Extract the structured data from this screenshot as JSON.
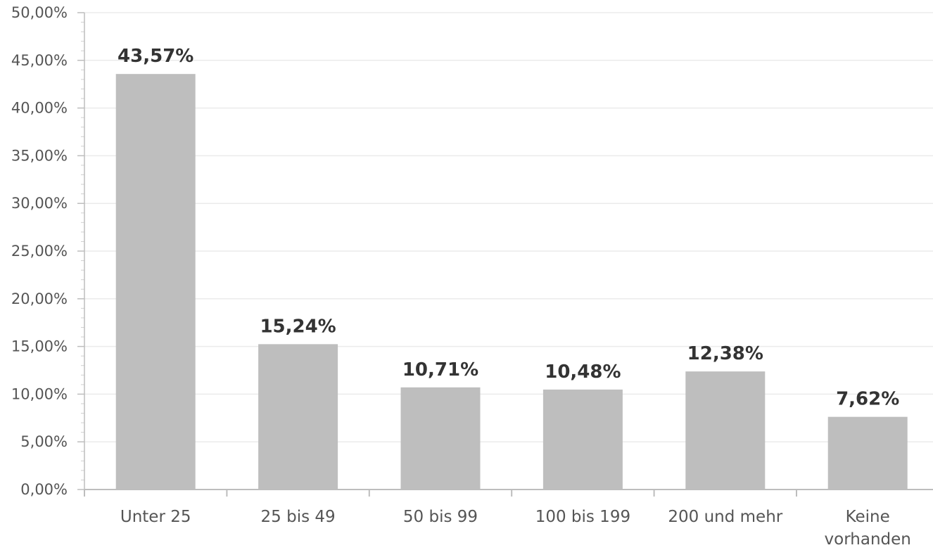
{
  "chart_data": {
    "type": "bar",
    "categories": [
      [
        "Unter 25"
      ],
      [
        "25 bis 49"
      ],
      [
        "50 bis 99"
      ],
      [
        "100 bis 199"
      ],
      [
        "200 und mehr"
      ],
      [
        "Keine",
        "vorhanden"
      ]
    ],
    "values": [
      43.57,
      15.24,
      10.71,
      10.48,
      12.38,
      7.62
    ],
    "data_labels": [
      "43,57%",
      "15,24%",
      "10,71%",
      "10,48%",
      "12,38%",
      "7,62%"
    ],
    "y_ticks": [
      "0,00%",
      "5,00%",
      "10,00%",
      "15,00%",
      "20,00%",
      "25,00%",
      "30,00%",
      "35,00%",
      "40,00%",
      "45,00%",
      "50,00%"
    ],
    "ylim": [
      0,
      50
    ],
    "grid": true,
    "bar_color": "#bebebe",
    "title": "",
    "xlabel": "",
    "ylabel": ""
  }
}
